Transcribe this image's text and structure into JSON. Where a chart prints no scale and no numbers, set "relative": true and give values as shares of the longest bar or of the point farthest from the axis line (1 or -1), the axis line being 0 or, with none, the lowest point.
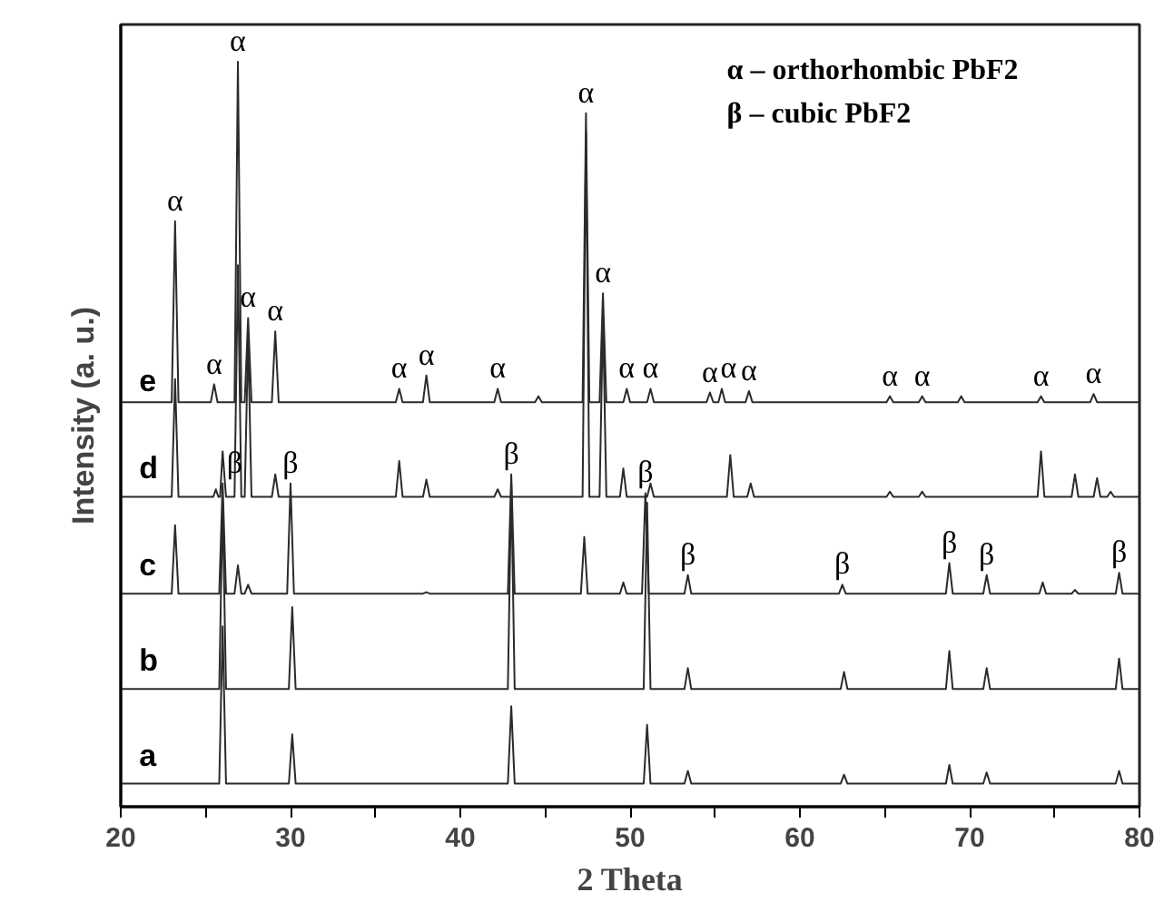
{
  "chart_data": {
    "type": "line",
    "relative": true,
    "xlabel": "2 Theta",
    "ylabel": "Intensity (a. u.)",
    "xlim": [
      20,
      80
    ],
    "xticks": [
      20,
      {
        "value": 25,
        "label": null
      },
      30,
      {
        "value": 35,
        "label": null
      },
      40,
      {
        "value": 45,
        "label": null
      },
      50,
      {
        "value": 55,
        "label": null
      },
      60,
      {
        "value": 65,
        "label": null
      },
      70,
      {
        "value": 75,
        "label": null
      },
      80
    ],
    "grid": false,
    "legend": false,
    "marker": "none",
    "line_style": "solid",
    "series": [
      {
        "name": "a",
        "color": "#2b2b2b",
        "x": [
          20,
          25.8,
          26.0,
          26.2,
          29.9,
          30.1,
          30.3,
          42.8,
          43.0,
          43.2,
          50.8,
          51.0,
          51.2,
          53.2,
          53.4,
          53.6,
          62.4,
          62.6,
          62.8,
          68.6,
          68.8,
          69.0,
          70.8,
          71.0,
          71.2,
          78.6,
          78.8,
          79.0,
          80
        ],
        "values": [
          0.031,
          0.031,
          0.242,
          0.031,
          0.031,
          0.097,
          0.031,
          0.031,
          0.135,
          0.031,
          0.031,
          0.11,
          0.031,
          0.031,
          0.048,
          0.031,
          0.031,
          0.043,
          0.031,
          0.031,
          0.056,
          0.031,
          0.031,
          0.046,
          0.031,
          0.031,
          0.048,
          0.031,
          0.031
        ]
      },
      {
        "name": "b",
        "color": "#2b2b2b",
        "x": [
          20,
          25.8,
          26.0,
          26.2,
          29.9,
          30.1,
          30.3,
          42.8,
          43.0,
          43.2,
          50.8,
          51.0,
          51.2,
          53.2,
          53.4,
          53.6,
          62.4,
          62.6,
          62.8,
          68.6,
          68.8,
          69.0,
          70.8,
          71.0,
          71.2,
          78.6,
          78.8,
          79.0,
          80
        ],
        "values": [
          0.158,
          0.158,
          0.408,
          0.158,
          0.158,
          0.268,
          0.158,
          0.158,
          0.434,
          0.158,
          0.158,
          0.408,
          0.158,
          0.158,
          0.186,
          0.158,
          0.158,
          0.181,
          0.158,
          0.158,
          0.209,
          0.158,
          0.158,
          0.186,
          0.158,
          0.158,
          0.199,
          0.158,
          0.158
        ]
      },
      {
        "name": "c",
        "color": "#2b2b2b",
        "x": [
          20,
          23.0,
          23.2,
          23.4,
          25.8,
          26.0,
          26.2,
          26.7,
          26.9,
          27.1,
          27.3,
          27.5,
          27.7,
          29.8,
          30.0,
          30.2,
          37.8,
          38.0,
          38.2,
          42.8,
          43.0,
          43.2,
          47.1,
          47.3,
          47.5,
          49.4,
          49.6,
          49.8,
          50.7,
          50.9,
          51.1,
          53.2,
          53.4,
          53.6,
          62.3,
          62.5,
          62.7,
          68.6,
          68.8,
          69.0,
          70.8,
          71.0,
          71.2,
          74.1,
          74.3,
          74.5,
          76.0,
          76.2,
          76.4,
          78.6,
          78.8,
          79.0,
          80
        ],
        "values": [
          0.286,
          0.286,
          0.378,
          0.286,
          0.286,
          0.434,
          0.286,
          0.286,
          0.324,
          0.286,
          0.286,
          0.298,
          0.286,
          0.286,
          0.434,
          0.286,
          0.286,
          0.288,
          0.286,
          0.286,
          0.446,
          0.286,
          0.286,
          0.362,
          0.286,
          0.286,
          0.301,
          0.286,
          0.286,
          0.421,
          0.286,
          0.286,
          0.311,
          0.286,
          0.286,
          0.298,
          0.286,
          0.286,
          0.327,
          0.286,
          0.286,
          0.311,
          0.286,
          0.286,
          0.301,
          0.286,
          0.286,
          0.291,
          0.286,
          0.286,
          0.314,
          0.286,
          0.286
        ]
      },
      {
        "name": "d",
        "color": "#2b2b2b",
        "x": [
          20,
          23.0,
          23.2,
          23.4,
          25.45,
          25.6,
          25.75,
          25.85,
          26.0,
          26.2,
          26.7,
          26.9,
          27.1,
          27.3,
          27.5,
          27.7,
          28.9,
          29.1,
          29.3,
          36.2,
          36.4,
          36.6,
          37.8,
          38.0,
          38.2,
          42.0,
          42.2,
          42.4,
          47.2,
          47.4,
          47.6,
          48.2,
          48.4,
          48.6,
          49.4,
          49.6,
          49.8,
          51.0,
          51.2,
          51.4,
          55.7,
          55.9,
          56.1,
          56.9,
          57.1,
          57.3,
          65.1,
          65.3,
          65.5,
          67.0,
          67.2,
          67.4,
          74.0,
          74.2,
          74.4,
          76.0,
          76.2,
          76.4,
          77.3,
          77.5,
          77.7,
          78.1,
          78.3,
          78.5,
          80
        ],
        "values": [
          0.416,
          0.416,
          0.574,
          0.416,
          0.416,
          0.426,
          0.416,
          0.416,
          0.477,
          0.416,
          0.416,
          0.727,
          0.416,
          0.416,
          0.63,
          0.416,
          0.416,
          0.446,
          0.416,
          0.416,
          0.464,
          0.416,
          0.416,
          0.439,
          0.416,
          0.416,
          0.426,
          0.416,
          0.416,
          0.906,
          0.416,
          0.416,
          0.66,
          0.416,
          0.416,
          0.454,
          0.416,
          0.416,
          0.434,
          0.416,
          0.416,
          0.472,
          0.416,
          0.416,
          0.434,
          0.416,
          0.416,
          0.423,
          0.416,
          0.416,
          0.423,
          0.416,
          0.416,
          0.477,
          0.416,
          0.416,
          0.446,
          0.416,
          0.416,
          0.441,
          0.416,
          0.416,
          0.423,
          0.416,
          0.416
        ]
      },
      {
        "name": "e",
        "color": "#2b2b2b",
        "x": [
          20,
          23.0,
          23.2,
          23.4,
          25.3,
          25.5,
          25.7,
          26.7,
          26.9,
          27.1,
          27.3,
          27.5,
          27.7,
          28.9,
          29.1,
          29.3,
          36.2,
          36.4,
          36.6,
          37.8,
          38.0,
          38.2,
          42.0,
          42.2,
          42.4,
          44.4,
          44.6,
          44.8,
          47.2,
          47.4,
          47.6,
          48.2,
          48.4,
          48.6,
          49.6,
          49.8,
          50.0,
          51.0,
          51.2,
          51.4,
          54.5,
          54.7,
          54.9,
          55.2,
          55.4,
          55.6,
          56.8,
          57.0,
          57.2,
          65.1,
          65.3,
          65.5,
          67.0,
          67.2,
          67.4,
          69.3,
          69.5,
          69.7,
          74.0,
          74.2,
          74.4,
          77.1,
          77.3,
          77.5,
          80
        ],
        "values": [
          0.543,
          0.543,
          0.786,
          0.543,
          0.543,
          0.567,
          0.543,
          0.543,
          1.0,
          0.543,
          0.543,
          0.656,
          0.543,
          0.543,
          0.638,
          0.543,
          0.543,
          0.561,
          0.543,
          0.543,
          0.579,
          0.543,
          0.543,
          0.561,
          0.543,
          0.543,
          0.551,
          0.543,
          0.543,
          0.931,
          0.543,
          0.543,
          0.689,
          0.543,
          0.543,
          0.561,
          0.543,
          0.543,
          0.561,
          0.543,
          0.543,
          0.556,
          0.543,
          0.543,
          0.561,
          0.543,
          0.543,
          0.558,
          0.543,
          0.543,
          0.551,
          0.543,
          0.543,
          0.551,
          0.543,
          0.543,
          0.551,
          0.543,
          0.543,
          0.551,
          0.543,
          0.543,
          0.554,
          0.543,
          0.543
        ]
      }
    ],
    "annotations": [
      "α – orthorhombic PbF2",
      "β – cubic PbF2",
      {
        "text": "α",
        "x": 23.2,
        "y": 0.786
      },
      {
        "text": "α",
        "x": 25.5,
        "y": 0.567
      },
      {
        "text": "α",
        "x": 26.9,
        "y": 1.0
      },
      {
        "text": "α",
        "x": 27.5,
        "y": 0.656
      },
      {
        "text": "α",
        "x": 29.1,
        "y": 0.638
      },
      {
        "text": "α",
        "x": 36.4,
        "y": 0.561
      },
      {
        "text": "α",
        "x": 38.0,
        "y": 0.579
      },
      {
        "text": "α",
        "x": 42.2,
        "y": 0.561
      },
      {
        "text": "α",
        "x": 47.4,
        "y": 0.931
      },
      {
        "text": "α",
        "x": 48.4,
        "y": 0.689
      },
      {
        "text": "α",
        "x": 49.8,
        "y": 0.561
      },
      {
        "text": "α",
        "x": 51.2,
        "y": 0.561
      },
      {
        "text": "α",
        "x": 54.7,
        "y": 0.556
      },
      {
        "text": "α",
        "x": 55.8,
        "y": 0.561
      },
      {
        "text": "α",
        "x": 57.0,
        "y": 0.558
      },
      {
        "text": "α",
        "x": 65.3,
        "y": 0.551
      },
      {
        "text": "α",
        "x": 67.2,
        "y": 0.551
      },
      {
        "text": "α",
        "x": 74.2,
        "y": 0.551
      },
      {
        "text": "α",
        "x": 77.3,
        "y": 0.554
      },
      {
        "text": "β",
        "x": 26.7,
        "y": 0.434
      },
      {
        "text": "β",
        "x": 30.0,
        "y": 0.434
      },
      {
        "text": "β",
        "x": 43.0,
        "y": 0.446
      },
      {
        "text": "β",
        "x": 50.9,
        "y": 0.421
      },
      {
        "text": "β",
        "x": 53.4,
        "y": 0.311
      },
      {
        "text": "β",
        "x": 62.5,
        "y": 0.298
      },
      {
        "text": "β",
        "x": 68.8,
        "y": 0.327
      },
      {
        "text": "β",
        "x": 71.0,
        "y": 0.311
      },
      {
        "text": "β",
        "x": 78.8,
        "y": 0.314
      }
    ]
  }
}
